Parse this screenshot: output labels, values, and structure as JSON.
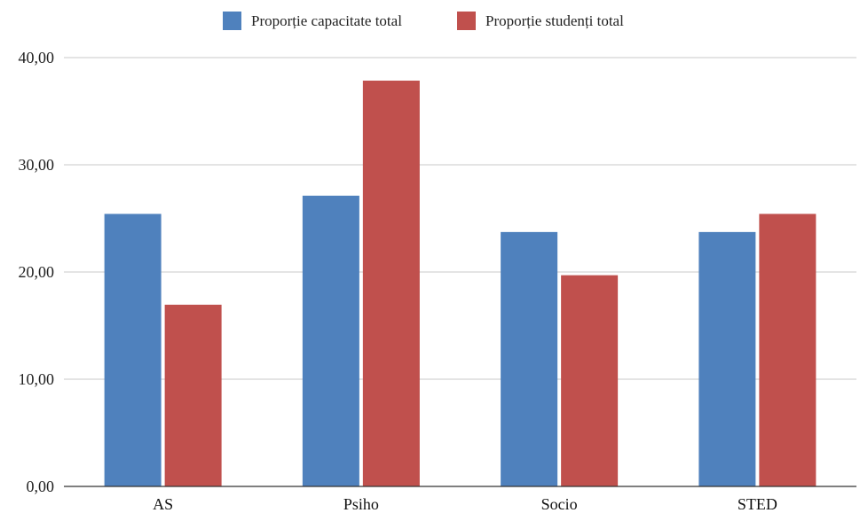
{
  "chart_data": {
    "type": "bar",
    "categories": [
      "AS",
      "Psiho",
      "Socio",
      "STED"
    ],
    "series": [
      {
        "name": "Proporție capacitate total",
        "color": "#4f81bd",
        "values": [
          25.42,
          27.12,
          23.73,
          23.73
        ]
      },
      {
        "name": "Proporție studenți total",
        "color": "#c0504d",
        "values": [
          16.95,
          37.85,
          19.7,
          25.42
        ]
      }
    ],
    "y_ticks": [
      "0,00",
      "10,00",
      "20,00",
      "30,00",
      "40,00"
    ],
    "ylim": [
      0,
      40
    ],
    "grid": true,
    "legend_position": "top-center",
    "title": "",
    "xlabel": "",
    "ylabel": ""
  }
}
